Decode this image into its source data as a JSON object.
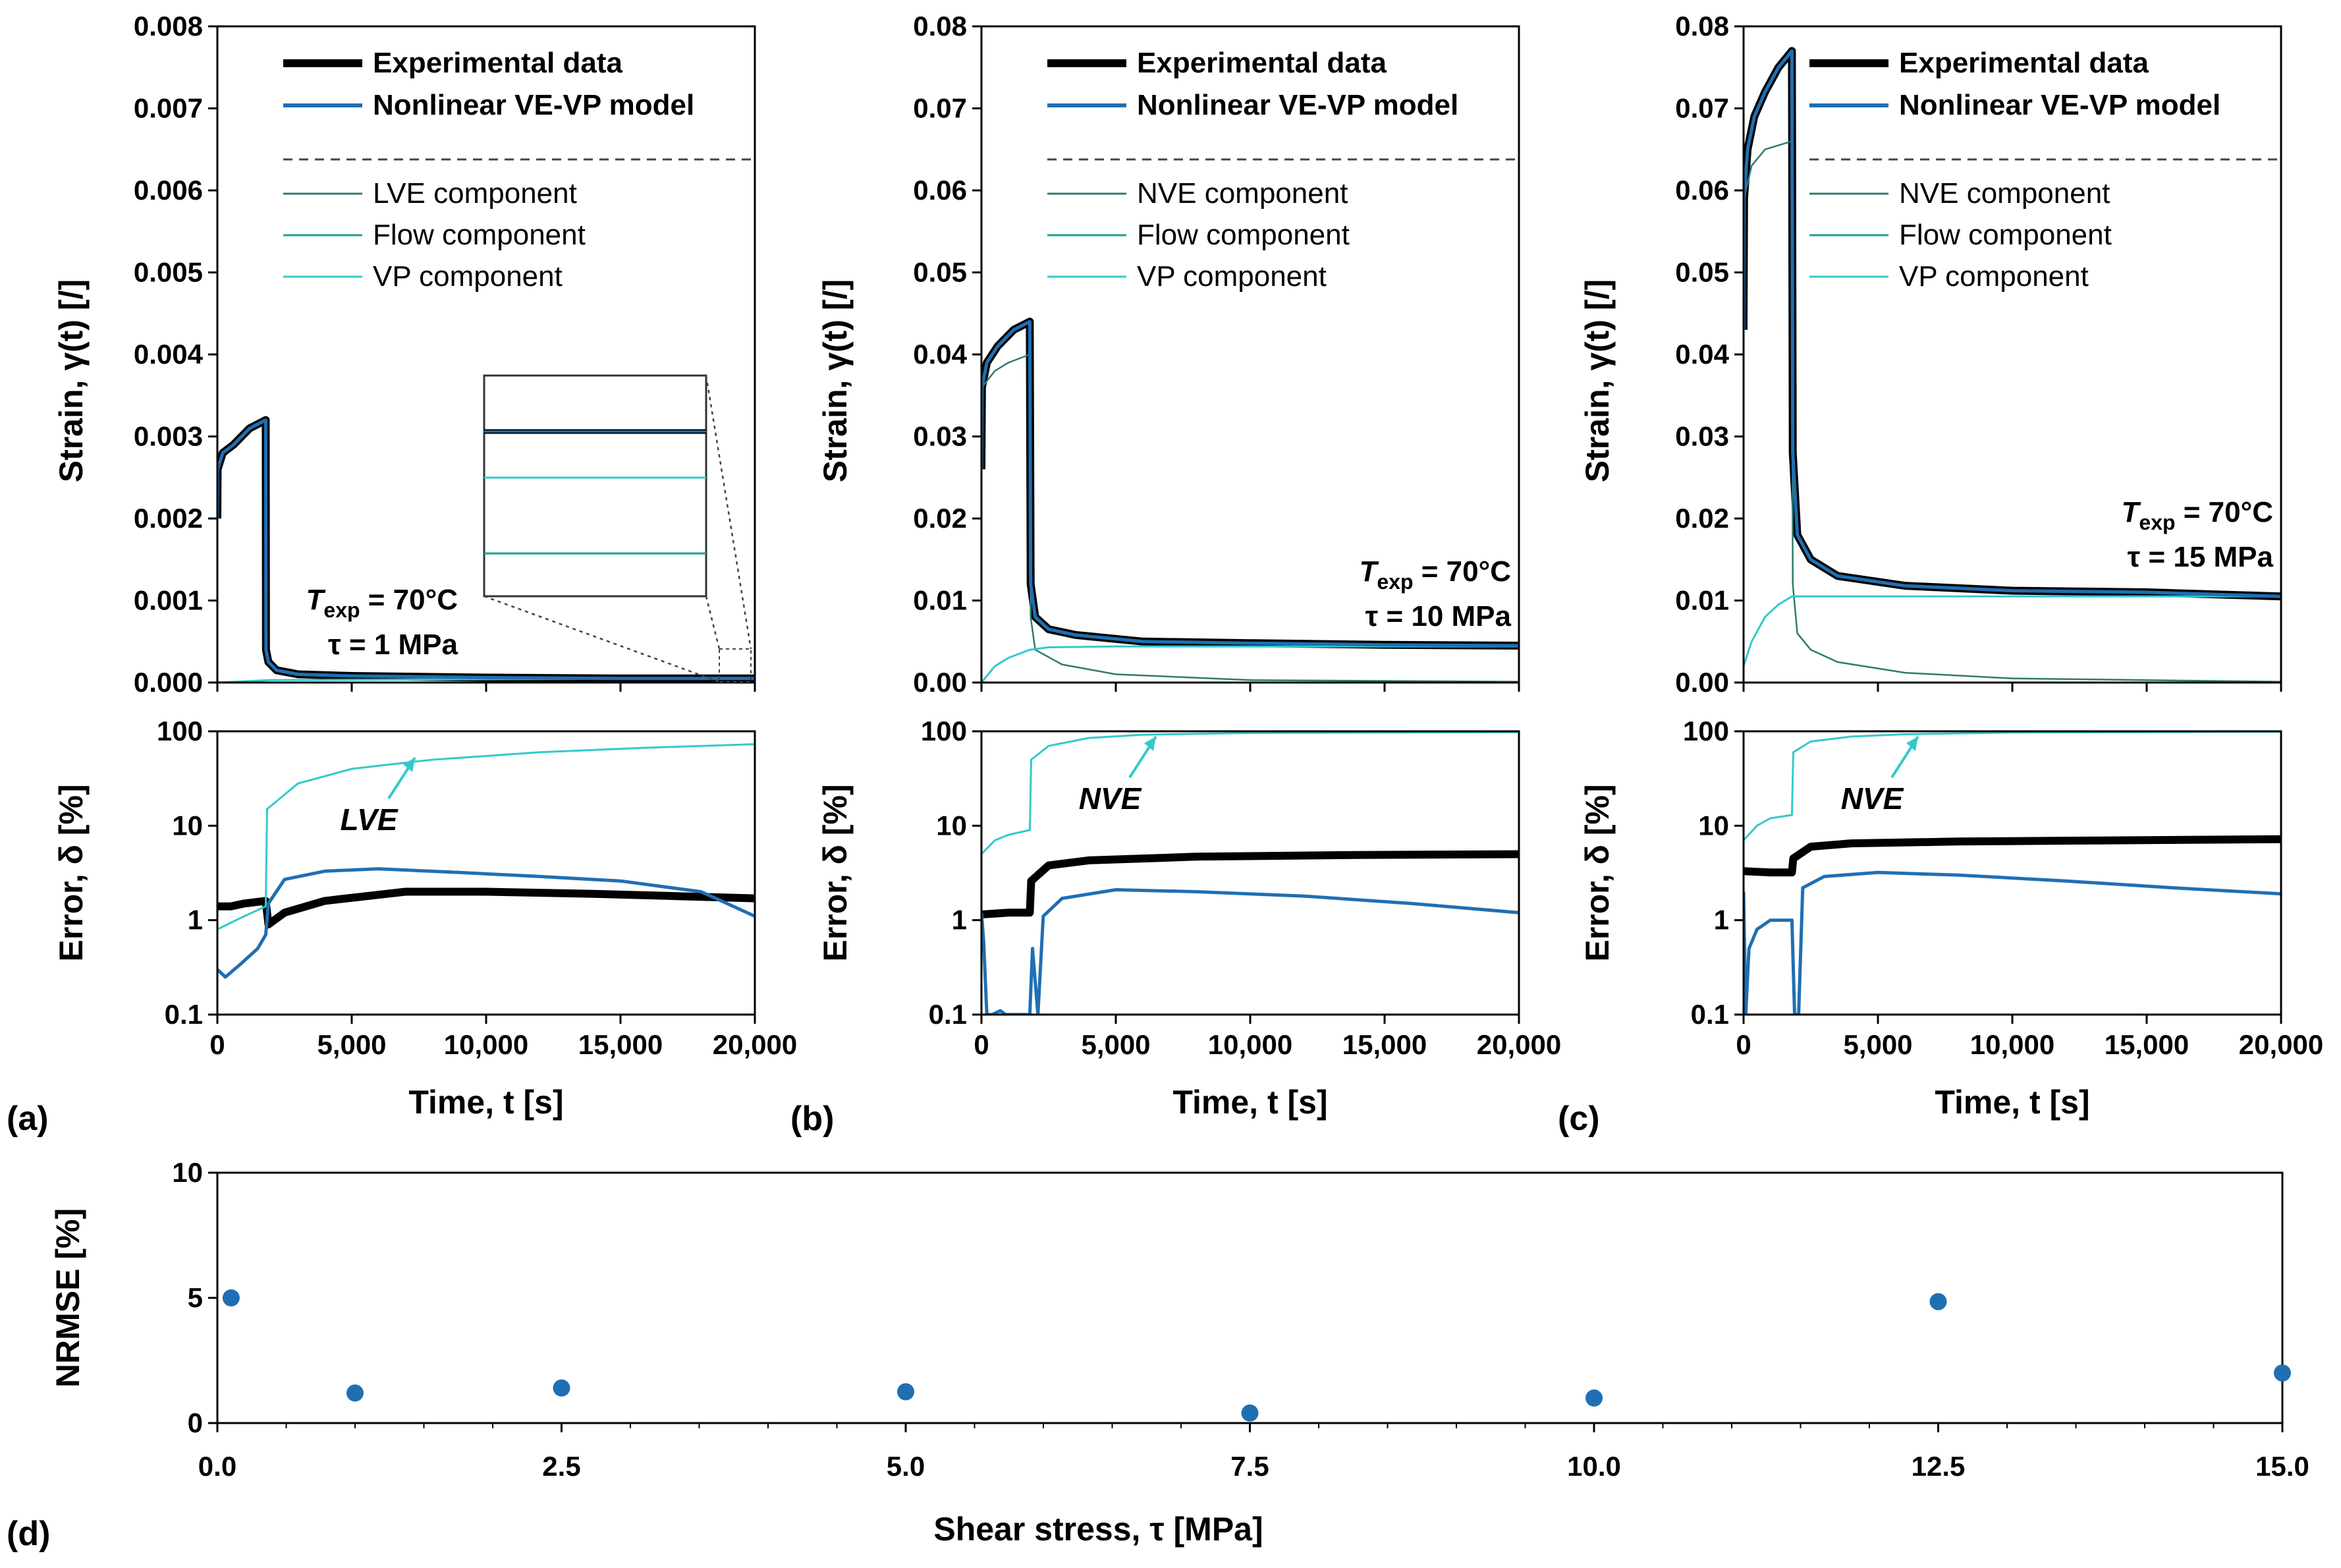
{
  "colors": {
    "experimental": "#000000",
    "model": "#1f6fb3",
    "ve_component": "#2f7a70",
    "flow_component": "#17a296",
    "vp_component": "#33c9cc",
    "scatter": "#1f6fb3"
  },
  "panels": [
    {
      "label": "(a)",
      "ylabel_top": "Strain, γ(t) [/]",
      "ylabel_bottom": "Error, δ [%]",
      "xlabel": "Time, t [s]",
      "temp_line": "T_exp = 70°C",
      "temp_main": "T",
      "temp_sub": "exp",
      "temp_rest": " = 70°C",
      "stress_line": "τ = 1 MPa",
      "legend": [
        "Experimental data",
        "Nonlinear VE-VP model",
        "LVE component",
        "Flow component",
        "VP component"
      ],
      "error_annotation": "LVE"
    },
    {
      "label": "(b)",
      "ylabel_top": "Strain, γ(t) [/]",
      "ylabel_bottom": "Error, δ [%]",
      "xlabel": "Time, t [s]",
      "temp_main": "T",
      "temp_sub": "exp",
      "temp_rest": " = 70°C",
      "stress_line": "τ = 10 MPa",
      "legend": [
        "Experimental data",
        "Nonlinear VE-VP model",
        "NVE component",
        "Flow component",
        "VP component"
      ],
      "error_annotation": "NVE"
    },
    {
      "label": "(c)",
      "ylabel_top": "Strain, γ(t) [/]",
      "ylabel_bottom": "Error, δ [%]",
      "xlabel": "Time, t [s]",
      "temp_main": "T",
      "temp_sub": "exp",
      "temp_rest": " = 70°C",
      "stress_line": "τ = 15 MPa",
      "legend": [
        "Experimental data",
        "Nonlinear VE-VP model",
        "NVE component",
        "Flow component",
        "VP component"
      ],
      "error_annotation": "NVE"
    }
  ],
  "panel_d": {
    "label": "(d)",
    "ylabel": "NRMSE [%]",
    "xlabel": "Shear stress, τ [MPa]"
  },
  "chart_data": [
    {
      "type": "line",
      "panel": "a-strain",
      "xlim": [
        0,
        20000
      ],
      "ylim": [
        0,
        0.008
      ],
      "xticks": [
        0,
        5000,
        10000,
        15000,
        20000
      ],
      "yticks": [
        0.0,
        0.001,
        0.002,
        0.003,
        0.004,
        0.005,
        0.006,
        0.007,
        0.008
      ],
      "ytick_labels": [
        "0.000",
        "0.001",
        "0.002",
        "0.003",
        "0.004",
        "0.005",
        "0.006",
        "0.007",
        "0.008"
      ],
      "series": [
        {
          "name": "Experimental data",
          "x": [
            0,
            10,
            200,
            600,
            1200,
            1800,
            1810,
            1900,
            2200,
            3000,
            5000,
            10000,
            15000,
            20000
          ],
          "y": [
            0.002,
            0.0026,
            0.0028,
            0.0029,
            0.0031,
            0.0032,
            0.0004,
            0.00025,
            0.00015,
            0.0001,
            8e-05,
            6e-05,
            5e-05,
            5e-05
          ]
        },
        {
          "name": "Nonlinear VE-VP model",
          "x": [
            0,
            10,
            200,
            600,
            1200,
            1800,
            1810,
            1900,
            2200,
            3000,
            5000,
            10000,
            15000,
            20000
          ],
          "y": [
            0.002,
            0.0026,
            0.0028,
            0.0029,
            0.0031,
            0.0032,
            0.0004,
            0.00025,
            0.00015,
            0.0001,
            8e-05,
            6e-05,
            5e-05,
            5e-05
          ]
        },
        {
          "name": "VP component",
          "x": [
            0,
            2000,
            10000,
            20000
          ],
          "y": [
            0.0,
            3e-05,
            4e-05,
            5e-05
          ]
        }
      ]
    },
    {
      "type": "line",
      "panel": "a-error",
      "scale": "log",
      "xlim": [
        0,
        20000
      ],
      "ylim": [
        0.1,
        100
      ],
      "xticks": [
        0,
        5000,
        10000,
        15000,
        20000
      ],
      "xtick_labels": [
        "0",
        "5,000",
        "10,000",
        "15,000",
        "20,000"
      ],
      "yticks": [
        0.1,
        1,
        10,
        100
      ],
      "ytick_labels": [
        "0.1",
        "1",
        "10",
        "100"
      ],
      "series": [
        {
          "name": "Experimental data",
          "x": [
            0,
            500,
            1000,
            1800,
            1900,
            2500,
            4000,
            7000,
            10000,
            14000,
            17000,
            20000
          ],
          "y": [
            1.4,
            1.4,
            1.5,
            1.6,
            0.9,
            1.2,
            1.6,
            2.0,
            2.0,
            1.9,
            1.8,
            1.7
          ]
        },
        {
          "name": "Nonlinear VE-VP model",
          "x": [
            0,
            300,
            900,
            1500,
            1800,
            1900,
            2500,
            4000,
            6000,
            9000,
            12000,
            15000,
            18000,
            20000
          ],
          "y": [
            0.3,
            0.25,
            0.35,
            0.5,
            0.7,
            1.5,
            2.7,
            3.3,
            3.5,
            3.2,
            2.9,
            2.6,
            2.0,
            1.1
          ]
        },
        {
          "name": "VP component",
          "x": [
            0,
            1000,
            1800,
            1850,
            3000,
            5000,
            8000,
            12000,
            16000,
            20000
          ],
          "y": [
            0.8,
            1.1,
            1.4,
            15,
            28,
            40,
            50,
            60,
            67,
            73
          ]
        }
      ]
    },
    {
      "type": "line",
      "panel": "b-strain",
      "xlim": [
        0,
        20000
      ],
      "ylim": [
        0,
        0.08
      ],
      "yticks": [
        0.0,
        0.01,
        0.02,
        0.03,
        0.04,
        0.05,
        0.06,
        0.07,
        0.08
      ],
      "ytick_labels": [
        "0.00",
        "0.01",
        "0.02",
        "0.03",
        "0.04",
        "0.05",
        "0.06",
        "0.07",
        "0.08"
      ],
      "series": [
        {
          "name": "Experimental data",
          "x": [
            0,
            20,
            200,
            600,
            1200,
            1800,
            1830,
            2000,
            2500,
            3500,
            6000,
            10000,
            15000,
            20000
          ],
          "y": [
            0.026,
            0.036,
            0.039,
            0.041,
            0.043,
            0.044,
            0.012,
            0.008,
            0.0065,
            0.0058,
            0.005,
            0.0048,
            0.0046,
            0.0045
          ]
        },
        {
          "name": "Nonlinear VE-VP model",
          "x": [
            0,
            20,
            200,
            600,
            1200,
            1800,
            1830,
            2000,
            2500,
            3500,
            6000,
            10000,
            15000,
            20000
          ],
          "y": [
            0.026,
            0.036,
            0.039,
            0.041,
            0.043,
            0.044,
            0.012,
            0.008,
            0.0065,
            0.0058,
            0.005,
            0.0048,
            0.0046,
            0.0045
          ]
        },
        {
          "name": "NVE component",
          "x": [
            0,
            20,
            500,
            1000,
            1800,
            1830,
            2000,
            3000,
            5000,
            10000,
            20000
          ],
          "y": [
            0.026,
            0.036,
            0.038,
            0.039,
            0.04,
            0.008,
            0.004,
            0.0022,
            0.001,
            0.0003,
            0.0001
          ]
        },
        {
          "name": "Flow component",
          "x": [
            0,
            20000
          ],
          "y": [
            0.0,
            0.0
          ]
        },
        {
          "name": "VP component",
          "x": [
            0,
            500,
            1000,
            1800,
            2500,
            5000,
            10000,
            20000
          ],
          "y": [
            0.0,
            0.002,
            0.003,
            0.004,
            0.0043,
            0.0044,
            0.0044,
            0.0044
          ]
        }
      ]
    },
    {
      "type": "line",
      "panel": "b-error",
      "scale": "log",
      "xlim": [
        0,
        20000
      ],
      "ylim": [
        0.1,
        100
      ],
      "xtick_labels": [
        "0",
        "5,000",
        "10,000",
        "15,000",
        "20,000"
      ],
      "ytick_labels": [
        "0.1",
        "1",
        "10",
        "100"
      ],
      "series": [
        {
          "name": "Experimental data",
          "x": [
            0,
            1000,
            1800,
            1850,
            2500,
            4000,
            8000,
            14000,
            20000
          ],
          "y": [
            1.15,
            1.2,
            1.2,
            2.6,
            3.8,
            4.3,
            4.7,
            4.9,
            5.0
          ]
        },
        {
          "name": "Nonlinear VE-VP model",
          "x": [
            0,
            80,
            200,
            400,
            700,
            900,
            1800,
            1900,
            2100,
            2300,
            3000,
            5000,
            8000,
            12000,
            16000,
            20000
          ],
          "y": [
            1.2,
            0.6,
            0.1,
            0.1,
            0.11,
            0.1,
            0.1,
            0.5,
            0.1,
            1.1,
            1.7,
            2.1,
            2.0,
            1.8,
            1.5,
            1.2
          ]
        },
        {
          "name": "VP component",
          "x": [
            0,
            500,
            1000,
            1800,
            1850,
            2500,
            4000,
            6000,
            10000,
            20000
          ],
          "y": [
            5,
            7,
            8,
            9,
            50,
            70,
            85,
            92,
            96,
            98
          ]
        }
      ]
    },
    {
      "type": "line",
      "panel": "c-strain",
      "xlim": [
        0,
        20000
      ],
      "ylim": [
        0,
        0.08
      ],
      "yticks": [
        0.0,
        0.01,
        0.02,
        0.03,
        0.04,
        0.05,
        0.06,
        0.07,
        0.08
      ],
      "ytick_labels": [
        "0.00",
        "0.01",
        "0.02",
        "0.03",
        "0.04",
        "0.05",
        "0.06",
        "0.07",
        "0.08"
      ],
      "series": [
        {
          "name": "Experimental data",
          "x": [
            0,
            20,
            150,
            400,
            800,
            1300,
            1800,
            1830,
            2000,
            2500,
            3500,
            6000,
            10000,
            15000,
            20000
          ],
          "y": [
            0.043,
            0.059,
            0.065,
            0.069,
            0.072,
            0.075,
            0.077,
            0.028,
            0.018,
            0.015,
            0.013,
            0.0118,
            0.0112,
            0.011,
            0.0105
          ]
        },
        {
          "name": "Nonlinear VE-VP model",
          "x": [
            0,
            20,
            150,
            400,
            800,
            1300,
            1800,
            1830,
            2000,
            2500,
            3500,
            6000,
            10000,
            15000,
            20000
          ],
          "y": [
            0.043,
            0.059,
            0.065,
            0.069,
            0.072,
            0.075,
            0.077,
            0.028,
            0.018,
            0.015,
            0.013,
            0.0118,
            0.0112,
            0.011,
            0.0105
          ]
        },
        {
          "name": "NVE component",
          "x": [
            0,
            20,
            300,
            800,
            1800,
            1830,
            2000,
            2500,
            3500,
            6000,
            10000,
            20000
          ],
          "y": [
            0.043,
            0.059,
            0.063,
            0.065,
            0.066,
            0.012,
            0.006,
            0.004,
            0.0025,
            0.0012,
            0.0005,
            0.0001
          ]
        },
        {
          "name": "Flow component",
          "x": [
            0,
            20000
          ],
          "y": [
            0.0,
            0.0
          ]
        },
        {
          "name": "VP component",
          "x": [
            0,
            300,
            800,
            1300,
            1800,
            2500,
            5000,
            10000,
            20000
          ],
          "y": [
            0.002,
            0.005,
            0.008,
            0.0095,
            0.0105,
            0.0105,
            0.0105,
            0.0105,
            0.0105
          ]
        }
      ]
    },
    {
      "type": "line",
      "panel": "c-error",
      "scale": "log",
      "xlim": [
        0,
        20000
      ],
      "ylim": [
        0.1,
        100
      ],
      "xtick_labels": [
        "0",
        "5,000",
        "10,000",
        "15,000",
        "20,000"
      ],
      "ytick_labels": [
        "0.1",
        "1",
        "10",
        "100"
      ],
      "series": [
        {
          "name": "Experimental data",
          "x": [
            0,
            1000,
            1800,
            1850,
            2500,
            4000,
            8000,
            14000,
            20000
          ],
          "y": [
            3.3,
            3.2,
            3.2,
            4.5,
            6.0,
            6.5,
            6.8,
            7.0,
            7.2
          ]
        },
        {
          "name": "Nonlinear VE-VP model",
          "x": [
            0,
            80,
            200,
            500,
            1000,
            1800,
            1900,
            2050,
            2200,
            3000,
            5000,
            8000,
            12000,
            16000,
            20000
          ],
          "y": [
            2.0,
            0.1,
            0.5,
            0.8,
            1.0,
            1.0,
            0.1,
            0.1,
            2.2,
            2.9,
            3.2,
            3.0,
            2.6,
            2.2,
            1.9
          ]
        },
        {
          "name": "VP component",
          "x": [
            0,
            500,
            1000,
            1800,
            1850,
            2500,
            4000,
            6000,
            10000,
            20000
          ],
          "y": [
            7,
            10,
            12,
            13,
            60,
            78,
            88,
            93,
            97,
            99
          ]
        }
      ]
    },
    {
      "type": "scatter",
      "panel": "d",
      "xlim": [
        0,
        15
      ],
      "ylim": [
        0,
        10
      ],
      "xticks": [
        0.0,
        2.5,
        5.0,
        7.5,
        10.0,
        12.5,
        15.0
      ],
      "xtick_labels": [
        "0.0",
        "2.5",
        "5.0",
        "7.5",
        "10.0",
        "12.5",
        "15.0"
      ],
      "yticks": [
        0,
        5,
        10
      ],
      "ytick_labels": [
        "0",
        "5",
        "10"
      ],
      "x": [
        0.1,
        1.0,
        2.5,
        5.0,
        7.5,
        10.0,
        12.5,
        15.0
      ],
      "y": [
        5.0,
        1.2,
        1.4,
        1.25,
        0.4,
        1.0,
        4.85,
        2.0
      ]
    }
  ]
}
